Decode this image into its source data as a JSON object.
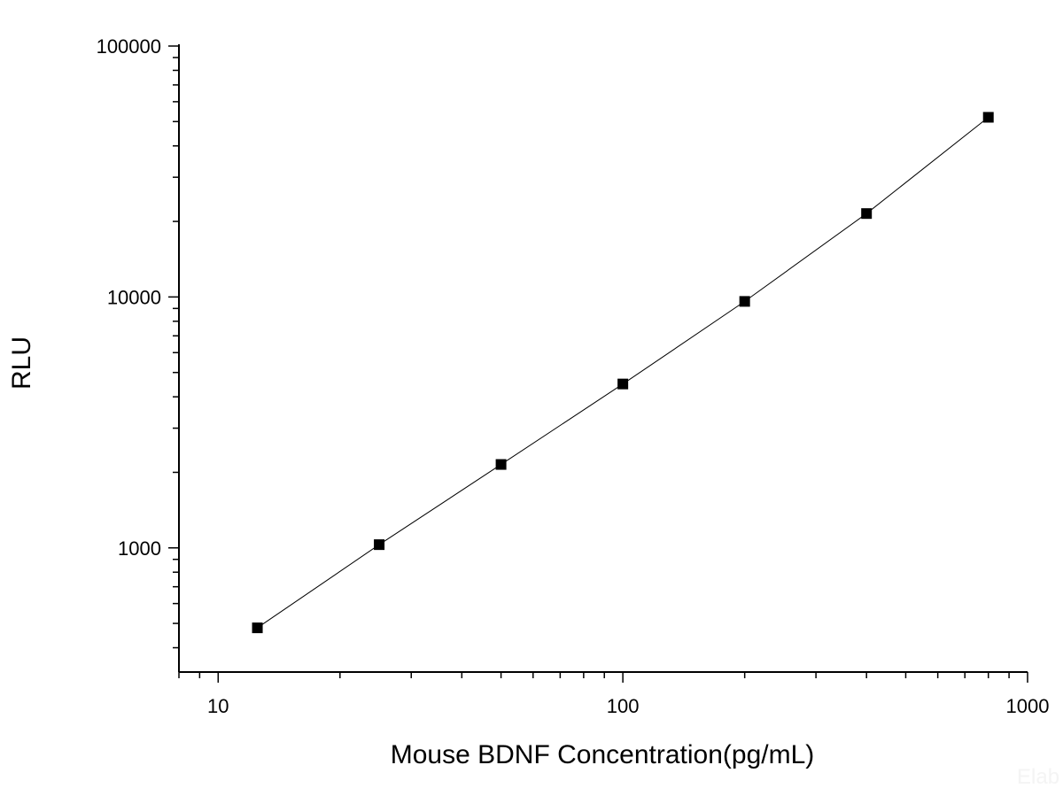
{
  "chart_data": {
    "type": "scatter",
    "xlabel": "Mouse BDNF Concentration(pg/mL)",
    "ylabel": "RLU",
    "x_scale": "log",
    "y_scale": "log",
    "xlim": [
      8,
      1000
    ],
    "ylim": [
      320,
      100000
    ],
    "x_major_ticks": [
      10,
      100,
      1000
    ],
    "x_tick_labels": [
      "10",
      "100",
      "1000"
    ],
    "y_major_ticks": [
      1000,
      10000,
      100000
    ],
    "y_tick_labels": [
      "1000",
      "10000",
      "100000"
    ],
    "grid": false,
    "legend": "none",
    "marker": "square",
    "marker_color": "#000000",
    "line_color": "#000000",
    "series": [
      {
        "x": [
          12.5,
          25,
          50,
          100,
          200,
          400,
          800
        ],
        "y": [
          480,
          1030,
          2150,
          4500,
          9600,
          21500,
          52000
        ]
      }
    ],
    "watermark": "Elab"
  }
}
